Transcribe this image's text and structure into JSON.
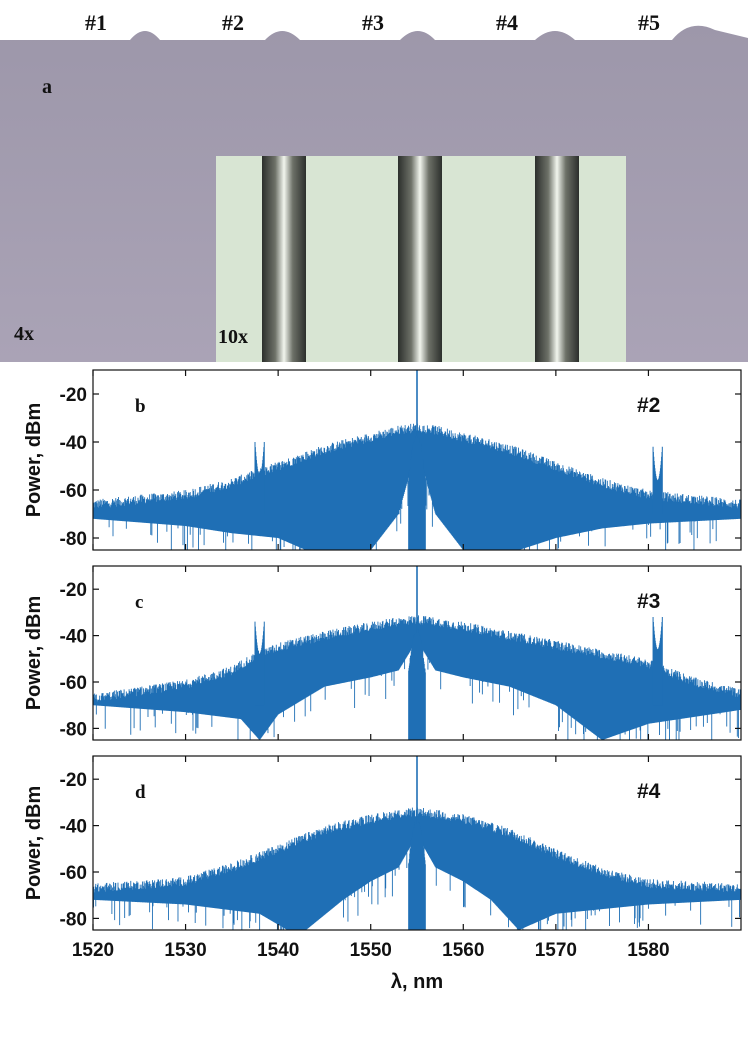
{
  "photo": {
    "panel_letter": "a",
    "sample_labels": [
      "#1",
      "#2",
      "#3",
      "#4",
      "#5"
    ],
    "magnification_outer": "4x",
    "magnification_inset": "10x"
  },
  "colors": {
    "spectrum": "#1f6fb5",
    "photo_bg": "#a6a0b3",
    "inset_bg": "#d9e6d4"
  },
  "chart_data": [
    {
      "type": "line",
      "panel": "b",
      "label": "#2",
      "ylabel": "Power, dBm",
      "xlim": [
        1520,
        1590
      ],
      "ylim": [
        -85,
        -10
      ],
      "yticks": [
        -20,
        -40,
        -60,
        -80
      ],
      "peak": 1555.0,
      "envelope": {
        "x": [
          1520,
          1530,
          1535,
          1540,
          1545,
          1550,
          1553,
          1555,
          1557,
          1560,
          1565,
          1570,
          1575,
          1580,
          1585,
          1590
        ],
        "y": [
          -66,
          -62,
          -57,
          -50,
          -43,
          -38,
          -35,
          -34,
          -35,
          -38,
          -43,
          -50,
          -57,
          -62,
          -64,
          -66
        ]
      },
      "lower_edge": {
        "x": [
          1520,
          1530,
          1535,
          1540,
          1543,
          1546,
          1550,
          1553,
          1555,
          1557,
          1560,
          1563,
          1566,
          1570,
          1575,
          1580,
          1590
        ],
        "y": [
          -72,
          -75,
          -78,
          -80,
          -85,
          -85,
          -85,
          -70,
          -42,
          -70,
          -85,
          -85,
          -85,
          -80,
          -76,
          -74,
          -72
        ]
      },
      "side_peaks": [
        {
          "x": 1538,
          "y": -48
        },
        {
          "x": 1581,
          "y": -50
        }
      ]
    },
    {
      "type": "line",
      "panel": "c",
      "label": "#3",
      "ylabel": "Power, dBm",
      "xlim": [
        1520,
        1590
      ],
      "ylim": [
        -85,
        -10
      ],
      "yticks": [
        -20,
        -40,
        -60,
        -80
      ],
      "peak": 1555.0,
      "envelope": {
        "x": [
          1520,
          1530,
          1535,
          1537,
          1540,
          1545,
          1550,
          1553,
          1555,
          1557,
          1560,
          1565,
          1570,
          1575,
          1580,
          1585,
          1590
        ],
        "y": [
          -67,
          -61,
          -55,
          -50,
          -45,
          -40,
          -36,
          -34,
          -33,
          -34,
          -36,
          -40,
          -44,
          -48,
          -52,
          -60,
          -65
        ]
      },
      "lower_edge": {
        "x": [
          1520,
          1530,
          1536,
          1538,
          1540,
          1545,
          1550,
          1553,
          1555,
          1557,
          1560,
          1565,
          1570,
          1575,
          1580,
          1590
        ],
        "y": [
          -70,
          -73,
          -76,
          -85,
          -74,
          -62,
          -58,
          -55,
          -42,
          -55,
          -58,
          -62,
          -70,
          -85,
          -78,
          -72
        ]
      },
      "side_peaks": [
        {
          "x": 1538,
          "y": -42
        },
        {
          "x": 1581,
          "y": -40
        }
      ]
    },
    {
      "type": "line",
      "panel": "d",
      "label": "#4",
      "ylabel": "Power, dBm",
      "xlabel": "λ, nm",
      "xlim": [
        1520,
        1590
      ],
      "ylim": [
        -85,
        -10
      ],
      "xticks": [
        1520,
        1530,
        1540,
        1550,
        1560,
        1570,
        1580
      ],
      "yticks": [
        -20,
        -40,
        -60,
        -80
      ],
      "peak": 1555.0,
      "envelope": {
        "x": [
          1520,
          1530,
          1535,
          1540,
          1545,
          1550,
          1553,
          1555,
          1557,
          1560,
          1565,
          1570,
          1575,
          1580,
          1585,
          1590
        ],
        "y": [
          -67,
          -64,
          -58,
          -50,
          -42,
          -37,
          -35,
          -34,
          -35,
          -37,
          -43,
          -52,
          -60,
          -65,
          -66,
          -67
        ]
      },
      "lower_edge": {
        "x": [
          1520,
          1530,
          1538,
          1541,
          1543,
          1547,
          1550,
          1553,
          1555,
          1557,
          1560,
          1563,
          1566,
          1570,
          1580,
          1590
        ],
        "y": [
          -72,
          -74,
          -78,
          -85,
          -85,
          -72,
          -64,
          -58,
          -44,
          -58,
          -64,
          -72,
          -85,
          -78,
          -74,
          -72
        ]
      },
      "side_peaks": []
    }
  ]
}
